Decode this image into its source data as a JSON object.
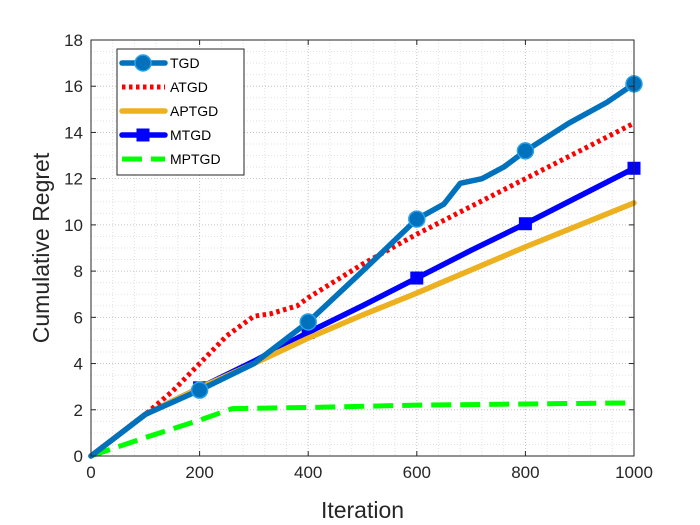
{
  "chart_data": {
    "type": "line",
    "title": "",
    "xlabel": "Iteration",
    "ylabel": "Cumulative Regret",
    "xlim": [
      0,
      1000
    ],
    "ylim": [
      0,
      18
    ],
    "xticks": [
      "0",
      "200",
      "400",
      "600",
      "800",
      "1000"
    ],
    "yticks": [
      "0",
      "2",
      "4",
      "6",
      "8",
      "10",
      "12",
      "14",
      "16",
      "18"
    ],
    "grid": "on (major and minor, dotted)",
    "legend_position": "top-left",
    "series": [
      {
        "name": "TGD",
        "color": "#0072BD",
        "style": "solid",
        "marker": "circle",
        "x": [
          0,
          100,
          200,
          300,
          400,
          500,
          600,
          650,
          680,
          720,
          760,
          800,
          880,
          950,
          1000
        ],
        "y": [
          0,
          1.8,
          2.85,
          4.0,
          5.8,
          8.0,
          10.25,
          10.9,
          11.8,
          12.0,
          12.5,
          13.2,
          14.4,
          15.3,
          16.1
        ],
        "marker_x": [
          200,
          400,
          600,
          800,
          1000
        ],
        "marker_y": [
          2.85,
          5.8,
          10.25,
          13.2,
          16.1
        ]
      },
      {
        "name": "ATGD",
        "color": "#FF0000",
        "style": "dotted",
        "marker": "none",
        "x": [
          0,
          100,
          150,
          200,
          250,
          300,
          330,
          380,
          400,
          500,
          600,
          700,
          800,
          900,
          1000
        ],
        "y": [
          0,
          1.8,
          2.8,
          4.0,
          5.2,
          6.05,
          6.15,
          6.5,
          6.85,
          8.3,
          9.6,
          10.8,
          12.0,
          13.2,
          14.4
        ]
      },
      {
        "name": "APTGD",
        "color": "#EDB120",
        "style": "solid",
        "marker": "none",
        "x": [
          0,
          100,
          200,
          300,
          400,
          500,
          600,
          700,
          800,
          900,
          1000
        ],
        "y": [
          0,
          1.8,
          2.95,
          4.0,
          5.1,
          6.1,
          7.05,
          8.05,
          9.05,
          10.0,
          10.95
        ]
      },
      {
        "name": "MTGD",
        "color": "#0000FF",
        "style": "solid",
        "marker": "square",
        "x": [
          0,
          100,
          200,
          300,
          400,
          500,
          600,
          700,
          800,
          900,
          1000
        ],
        "y": [
          0,
          1.8,
          2.95,
          4.1,
          5.35,
          6.5,
          7.7,
          8.9,
          10.05,
          11.25,
          12.45
        ],
        "marker_x": [
          200,
          400,
          600,
          800,
          1000
        ],
        "marker_y": [
          2.95,
          5.35,
          7.7,
          10.05,
          12.45
        ]
      },
      {
        "name": "MPTGD",
        "color": "#00FF00",
        "style": "dashed",
        "marker": "none",
        "x": [
          0,
          100,
          200,
          260,
          400,
          600,
          800,
          1000
        ],
        "y": [
          0,
          0.8,
          1.55,
          2.05,
          2.1,
          2.2,
          2.25,
          2.3
        ]
      }
    ]
  }
}
